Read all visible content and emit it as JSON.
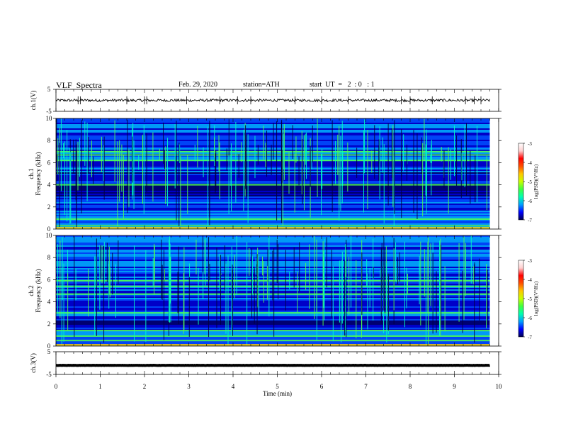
{
  "header": {
    "title": "VLF  Spectra",
    "date": "Feb. 29, 2020",
    "station": "station=ATH",
    "start": "start  UT  =   2  : 0   : 1"
  },
  "colors": {
    "colormap": [
      "#000060",
      "#0000c8",
      "#0050ff",
      "#00b4ff",
      "#00ffc0",
      "#50ff50",
      "#d0ff00",
      "#ffd000",
      "#ff6000",
      "#ff0000",
      "#ffe0e0",
      "#ffffff"
    ]
  },
  "chart_data": [
    {
      "type": "line",
      "ylabel": "ch.1(V)",
      "ylim": [
        -5,
        5
      ],
      "yticks": [
        "5",
        "-5"
      ],
      "xlim": [
        0,
        10
      ],
      "x_end": 9.8,
      "baseline": 0,
      "noise": 0.6,
      "spikes": [
        0.5,
        0.55,
        1.6,
        2.0,
        2.05,
        2.95,
        3.7,
        4.1,
        4.4,
        5.4,
        6.0,
        6.6,
        7.8,
        8.0,
        8.5,
        9.25,
        9.45,
        9.6
      ],
      "color": "#000000"
    },
    {
      "type": "heatmap",
      "ylabel": "ch.1\nFrequency  (kHz)",
      "ylim": [
        0,
        10
      ],
      "yticks": [
        "0",
        "2",
        "4",
        "6",
        "8",
        "10"
      ],
      "xlim": [
        0,
        10
      ],
      "x_end": 9.8,
      "bands_khz": [
        0.3,
        0.9,
        4.0,
        6.2,
        6.7,
        7.0
      ],
      "quiet_band_khz": [
        3.0,
        5.2
      ],
      "colorbar": {
        "label": "log(PSD)(V²/Hz)",
        "range": [
          -7,
          -3
        ],
        "ticks": [
          "-3",
          "-4",
          "-5",
          "-6",
          "-7"
        ]
      }
    },
    {
      "type": "heatmap",
      "ylabel": "ch.2\nFrequency  (kHz)",
      "ylim": [
        0,
        10
      ],
      "yticks": [
        "0",
        "2",
        "4",
        "6",
        "8",
        "10"
      ],
      "xlim": [
        0,
        10
      ],
      "x_end": 9.8,
      "bands_khz": [
        0.5,
        0.9,
        1.4,
        3.0,
        4.7,
        5.4,
        5.9
      ],
      "quiet_band_khz": [
        1.7,
        2.6
      ],
      "colorbar": {
        "label": "log(PSD)(V²/Hz)",
        "range": [
          -7,
          -3
        ],
        "ticks": [
          "-3",
          "-4",
          "-5",
          "-6",
          "-7"
        ]
      }
    },
    {
      "type": "line",
      "ylabel": "ch.3(V)",
      "ylim": [
        -5,
        5
      ],
      "yticks": [
        "5",
        "-5"
      ],
      "xlim": [
        0,
        10
      ],
      "x_end": 9.8,
      "baseline": -1,
      "noise": 0.05,
      "spikes": [],
      "color": "#000000"
    }
  ],
  "xaxis": {
    "label": "Time  (min)",
    "ticks": [
      "0",
      "1",
      "2",
      "3",
      "4",
      "5",
      "6",
      "7",
      "8",
      "9",
      "10"
    ]
  }
}
